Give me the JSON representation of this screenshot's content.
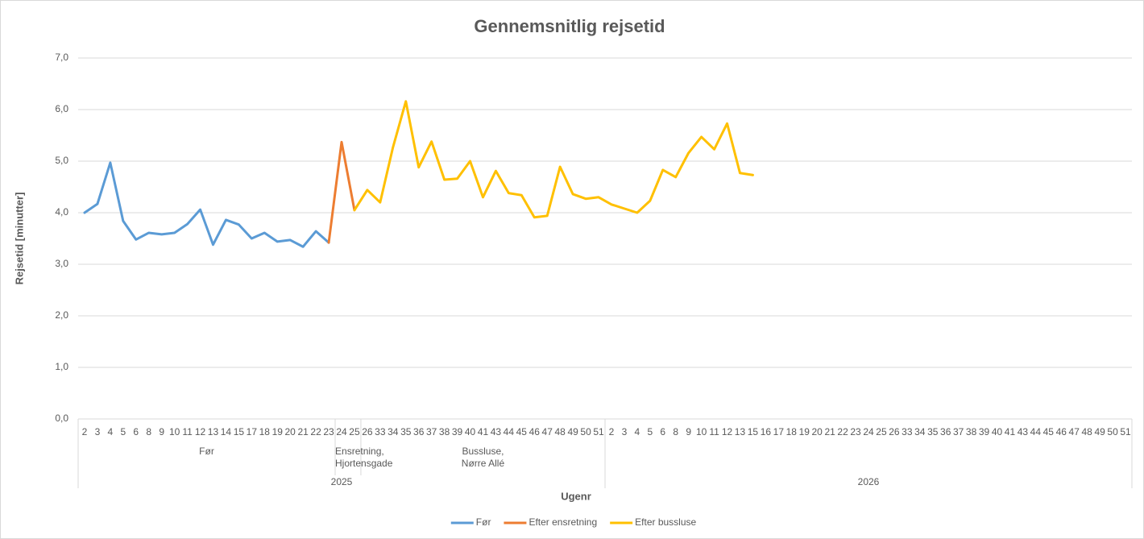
{
  "chart_data": {
    "type": "line",
    "title": "Gennemsnitlig rejsetid",
    "y_label": "Rejsetid [minutter]",
    "x_label": "Ugenr",
    "ylim": [
      0,
      7
    ],
    "yticks": [
      {
        "value": 0,
        "label": "0,0"
      },
      {
        "value": 1,
        "label": "1,0"
      },
      {
        "value": 2,
        "label": "2,0"
      },
      {
        "value": 3,
        "label": "3,0"
      },
      {
        "value": 4,
        "label": "4,0"
      },
      {
        "value": 5,
        "label": "5,0"
      },
      {
        "value": 6,
        "label": "6,0"
      },
      {
        "value": 7,
        "label": "7,0"
      }
    ],
    "grid": true,
    "legend": "bottom",
    "years": [
      {
        "label": "2025",
        "groups": [
          {
            "label": "Før",
            "categories": [
              2,
              3,
              4,
              5,
              6,
              8,
              9,
              10,
              11,
              12,
              13,
              14,
              15,
              17,
              18,
              19,
              20,
              21,
              22,
              23
            ]
          },
          {
            "label": "Ensretning,\nHjortensgade",
            "categories": [
              24,
              25
            ]
          },
          {
            "label": "Bussluse,\nNørre Allé",
            "categories": [
              26,
              33,
              34,
              35,
              36,
              37,
              38,
              39,
              40,
              41,
              43,
              44,
              45,
              46,
              47,
              48,
              49,
              50,
              51
            ]
          }
        ]
      },
      {
        "label": "2026",
        "groups": [
          {
            "categories": [
              2,
              3,
              4,
              5,
              6,
              8,
              9,
              10,
              11,
              12,
              13,
              15,
              16,
              17,
              18,
              19,
              20,
              21,
              22,
              23,
              24,
              25,
              26,
              33,
              34,
              35,
              36,
              37,
              38,
              39,
              40,
              41,
              43,
              44,
              45,
              46,
              47,
              48,
              49,
              50,
              51
            ]
          }
        ]
      }
    ],
    "series": [
      {
        "name": "Før",
        "color": "#5b9bd5",
        "values": [
          4.0,
          4.17,
          4.97,
          3.84,
          3.48,
          3.61,
          3.58,
          3.61,
          3.78,
          4.06,
          3.38,
          3.86,
          3.77,
          3.5,
          3.61,
          3.44,
          3.47,
          3.34,
          3.64,
          3.42,
          null,
          null,
          null,
          null,
          null,
          null,
          null,
          null,
          null,
          null,
          null,
          null,
          null,
          null,
          null,
          null,
          null,
          null,
          null,
          null,
          null,
          null,
          null,
          null,
          null,
          null,
          null,
          null,
          null,
          null,
          null,
          null,
          null,
          null,
          null,
          null,
          null,
          null,
          null,
          null,
          null,
          null,
          null,
          null,
          null,
          null,
          null,
          null,
          null,
          null,
          null,
          null,
          null,
          null,
          null,
          null,
          null,
          null,
          null,
          null,
          null,
          null
        ]
      },
      {
        "name": "Efter ensretning",
        "color": "#ed7d31",
        "values": [
          null,
          null,
          null,
          null,
          null,
          null,
          null,
          null,
          null,
          null,
          null,
          null,
          null,
          null,
          null,
          null,
          null,
          null,
          null,
          3.42,
          5.37,
          4.05,
          null,
          null,
          null,
          null,
          null,
          null,
          null,
          null,
          null,
          null,
          null,
          null,
          null,
          null,
          null,
          null,
          null,
          null,
          null,
          null,
          null,
          null,
          null,
          null,
          null,
          null,
          null,
          null,
          null,
          null,
          null,
          null,
          null,
          null,
          null,
          null,
          null,
          null,
          null,
          null,
          null,
          null,
          null,
          null,
          null,
          null,
          null,
          null,
          null,
          null,
          null,
          null,
          null,
          null,
          null,
          null,
          null,
          null,
          null,
          null
        ]
      },
      {
        "name": "Efter bussluse",
        "color": "#ffc000",
        "values": [
          null,
          null,
          null,
          null,
          null,
          null,
          null,
          null,
          null,
          null,
          null,
          null,
          null,
          null,
          null,
          null,
          null,
          null,
          null,
          null,
          null,
          4.05,
          4.44,
          4.2,
          5.27,
          6.16,
          4.88,
          5.38,
          4.64,
          4.66,
          5.0,
          4.3,
          4.81,
          4.38,
          4.34,
          3.91,
          3.94,
          4.89,
          4.36,
          4.27,
          4.3,
          4.16,
          4.08,
          4.0,
          4.23,
          4.83,
          4.69,
          5.16,
          5.47,
          5.23,
          5.73,
          4.77,
          4.73,
          null,
          null,
          null,
          null,
          null,
          null,
          null,
          null,
          null,
          null,
          null,
          null,
          null,
          null,
          null,
          null,
          null,
          null,
          null,
          null,
          null,
          null,
          null,
          null,
          null,
          null,
          null,
          null,
          null
        ]
      }
    ]
  }
}
